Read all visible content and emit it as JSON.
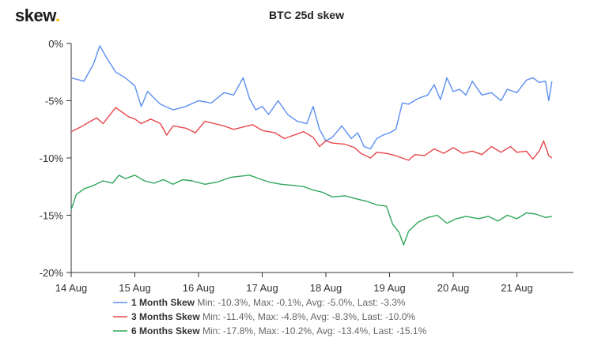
{
  "brand": {
    "name": "skew",
    "dot": "."
  },
  "chart_data": {
    "type": "line",
    "title": "BTC 25d skew",
    "xlabel": "",
    "ylabel": "",
    "x_ticks": [
      "14 Aug",
      "15 Aug",
      "16 Aug",
      "17 Aug",
      "18 Aug",
      "19 Aug",
      "20 Aug",
      "21 Aug"
    ],
    "y_ticks": [
      "0%",
      "-5%",
      "-10%",
      "-15%",
      "-20%"
    ],
    "xlim_days": [
      0,
      7.6
    ],
    "ylim": [
      -20,
      0
    ],
    "grid": false,
    "legend_position": "bottom",
    "series": [
      {
        "name": "1 Month Skew",
        "color": "#5b8ff0",
        "stats": "Min: -10.3%, Max: -0.1%, Avg: -5.0%, Last: -3.3%",
        "points": [
          [
            0,
            -3.0
          ],
          [
            0.2,
            -3.3
          ],
          [
            0.35,
            -1.8
          ],
          [
            0.45,
            -0.2
          ],
          [
            0.55,
            -1.2
          ],
          [
            0.7,
            -2.5
          ],
          [
            0.85,
            -3.0
          ],
          [
            1.0,
            -3.7
          ],
          [
            1.1,
            -5.5
          ],
          [
            1.2,
            -4.2
          ],
          [
            1.4,
            -5.3
          ],
          [
            1.6,
            -5.8
          ],
          [
            1.8,
            -5.5
          ],
          [
            2.0,
            -5.0
          ],
          [
            2.2,
            -5.2
          ],
          [
            2.4,
            -4.3
          ],
          [
            2.55,
            -4.5
          ],
          [
            2.7,
            -3.0
          ],
          [
            2.8,
            -4.8
          ],
          [
            2.9,
            -5.8
          ],
          [
            3.0,
            -5.5
          ],
          [
            3.1,
            -6.2
          ],
          [
            3.25,
            -5.0
          ],
          [
            3.4,
            -6.2
          ],
          [
            3.55,
            -6.8
          ],
          [
            3.7,
            -7.0
          ],
          [
            3.8,
            -5.5
          ],
          [
            3.9,
            -7.5
          ],
          [
            4.0,
            -8.5
          ],
          [
            4.1,
            -8.2
          ],
          [
            4.25,
            -7.2
          ],
          [
            4.4,
            -8.3
          ],
          [
            4.5,
            -7.8
          ],
          [
            4.6,
            -9.0
          ],
          [
            4.7,
            -9.2
          ],
          [
            4.8,
            -8.3
          ],
          [
            4.9,
            -8.0
          ],
          [
            5.0,
            -7.8
          ],
          [
            5.1,
            -7.5
          ],
          [
            5.2,
            -5.2
          ],
          [
            5.3,
            -5.3
          ],
          [
            5.45,
            -4.8
          ],
          [
            5.6,
            -4.5
          ],
          [
            5.7,
            -3.6
          ],
          [
            5.8,
            -4.9
          ],
          [
            5.9,
            -3.0
          ],
          [
            6.0,
            -4.2
          ],
          [
            6.1,
            -4.0
          ],
          [
            6.2,
            -4.5
          ],
          [
            6.3,
            -3.3
          ],
          [
            6.45,
            -4.5
          ],
          [
            6.6,
            -4.3
          ],
          [
            6.75,
            -5.0
          ],
          [
            6.85,
            -4.0
          ],
          [
            7.0,
            -4.3
          ],
          [
            7.15,
            -3.2
          ],
          [
            7.25,
            -3.0
          ],
          [
            7.35,
            -3.4
          ],
          [
            7.45,
            -3.3
          ],
          [
            7.5,
            -5.0
          ],
          [
            7.55,
            -3.3
          ]
        ]
      },
      {
        "name": "3 Months Skew",
        "color": "#e8464b",
        "stats": "Min: -11.4%, Max: -4.8%, Avg: -8.3%, Last: -10.0%",
        "points": [
          [
            0,
            -7.7
          ],
          [
            0.15,
            -7.3
          ],
          [
            0.3,
            -6.8
          ],
          [
            0.4,
            -6.5
          ],
          [
            0.5,
            -7.0
          ],
          [
            0.6,
            -6.3
          ],
          [
            0.7,
            -5.6
          ],
          [
            0.8,
            -6.0
          ],
          [
            0.9,
            -6.4
          ],
          [
            1.0,
            -6.6
          ],
          [
            1.1,
            -7.0
          ],
          [
            1.25,
            -6.6
          ],
          [
            1.4,
            -7.0
          ],
          [
            1.5,
            -8.0
          ],
          [
            1.6,
            -7.2
          ],
          [
            1.8,
            -7.4
          ],
          [
            1.95,
            -7.8
          ],
          [
            2.1,
            -6.8
          ],
          [
            2.25,
            -7.0
          ],
          [
            2.4,
            -7.2
          ],
          [
            2.55,
            -7.5
          ],
          [
            2.7,
            -7.3
          ],
          [
            2.85,
            -7.1
          ],
          [
            3.0,
            -7.6
          ],
          [
            3.2,
            -7.8
          ],
          [
            3.35,
            -8.3
          ],
          [
            3.5,
            -8.0
          ],
          [
            3.65,
            -7.7
          ],
          [
            3.8,
            -8.2
          ],
          [
            3.9,
            -9.0
          ],
          [
            4.0,
            -8.5
          ],
          [
            4.1,
            -8.7
          ],
          [
            4.3,
            -8.8
          ],
          [
            4.45,
            -9.1
          ],
          [
            4.55,
            -9.6
          ],
          [
            4.7,
            -10.0
          ],
          [
            4.8,
            -9.5
          ],
          [
            4.95,
            -9.6
          ],
          [
            5.1,
            -9.8
          ],
          [
            5.2,
            -10.0
          ],
          [
            5.3,
            -10.2
          ],
          [
            5.4,
            -9.7
          ],
          [
            5.55,
            -9.8
          ],
          [
            5.7,
            -9.2
          ],
          [
            5.85,
            -9.6
          ],
          [
            6.0,
            -9.1
          ],
          [
            6.15,
            -9.6
          ],
          [
            6.3,
            -9.4
          ],
          [
            6.45,
            -9.7
          ],
          [
            6.6,
            -9.0
          ],
          [
            6.75,
            -9.5
          ],
          [
            6.9,
            -9.0
          ],
          [
            7.0,
            -9.5
          ],
          [
            7.15,
            -9.4
          ],
          [
            7.25,
            -10.1
          ],
          [
            7.35,
            -9.4
          ],
          [
            7.42,
            -8.5
          ],
          [
            7.5,
            -9.8
          ],
          [
            7.55,
            -10.0
          ]
        ]
      },
      {
        "name": "6 Months Skew",
        "color": "#2fa65a",
        "stats": "Min: -17.8%, Max: -10.2%, Avg: -13.4%, Last: -15.1%",
        "points": [
          [
            0,
            -14.5
          ],
          [
            0.08,
            -13.2
          ],
          [
            0.2,
            -12.7
          ],
          [
            0.35,
            -12.4
          ],
          [
            0.5,
            -12.0
          ],
          [
            0.65,
            -12.2
          ],
          [
            0.75,
            -11.5
          ],
          [
            0.85,
            -11.8
          ],
          [
            1.0,
            -11.5
          ],
          [
            1.15,
            -12.0
          ],
          [
            1.3,
            -12.2
          ],
          [
            1.45,
            -11.9
          ],
          [
            1.6,
            -12.3
          ],
          [
            1.75,
            -11.9
          ],
          [
            1.9,
            -12.0
          ],
          [
            2.1,
            -12.3
          ],
          [
            2.3,
            -12.1
          ],
          [
            2.5,
            -11.7
          ],
          [
            2.65,
            -11.6
          ],
          [
            2.8,
            -11.5
          ],
          [
            2.95,
            -11.8
          ],
          [
            3.1,
            -12.1
          ],
          [
            3.3,
            -12.3
          ],
          [
            3.5,
            -12.4
          ],
          [
            3.65,
            -12.5
          ],
          [
            3.8,
            -12.8
          ],
          [
            3.95,
            -13.0
          ],
          [
            4.1,
            -13.4
          ],
          [
            4.3,
            -13.3
          ],
          [
            4.5,
            -13.6
          ],
          [
            4.65,
            -13.8
          ],
          [
            4.8,
            -14.1
          ],
          [
            4.95,
            -14.2
          ],
          [
            5.05,
            -15.8
          ],
          [
            5.15,
            -16.5
          ],
          [
            5.22,
            -17.6
          ],
          [
            5.3,
            -16.4
          ],
          [
            5.45,
            -15.6
          ],
          [
            5.6,
            -15.2
          ],
          [
            5.75,
            -15.0
          ],
          [
            5.9,
            -15.7
          ],
          [
            6.05,
            -15.3
          ],
          [
            6.2,
            -15.1
          ],
          [
            6.4,
            -15.3
          ],
          [
            6.55,
            -15.1
          ],
          [
            6.7,
            -15.5
          ],
          [
            6.85,
            -15.0
          ],
          [
            7.0,
            -15.3
          ],
          [
            7.15,
            -14.8
          ],
          [
            7.3,
            -14.9
          ],
          [
            7.45,
            -15.2
          ],
          [
            7.55,
            -15.1
          ]
        ]
      }
    ]
  }
}
